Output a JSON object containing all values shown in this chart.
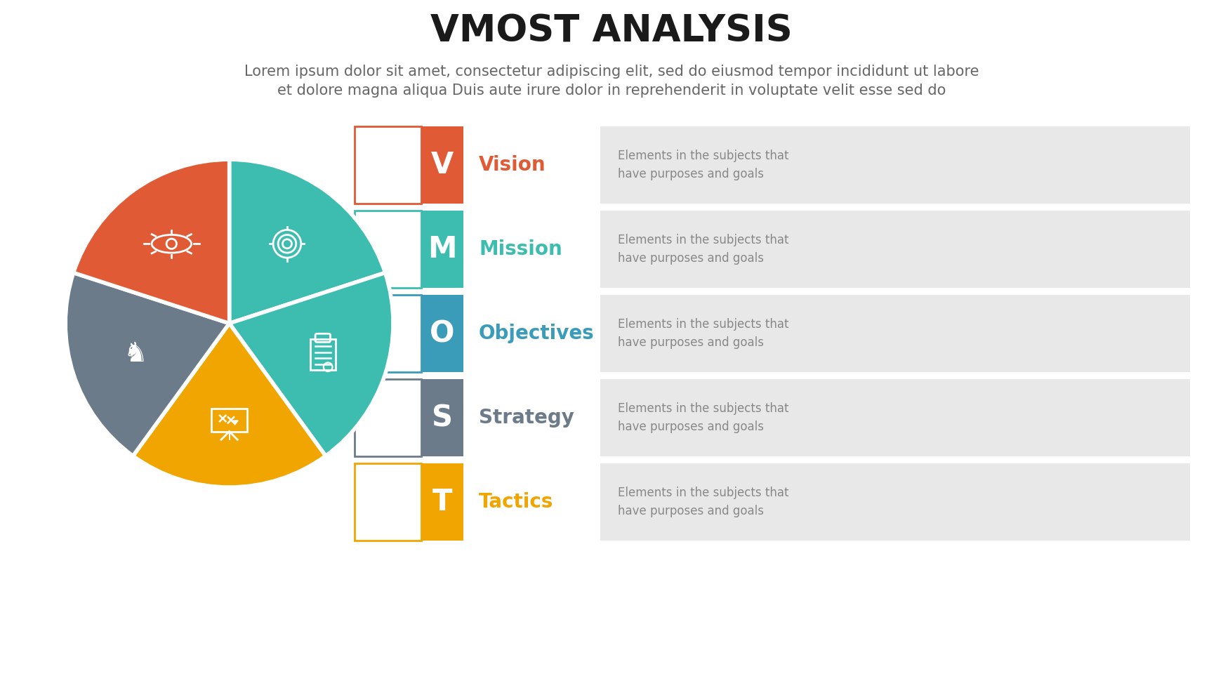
{
  "title": "VMOST ANALYSIS",
  "subtitle_line1": "Lorem ipsum dolor sit amet, consectetur adipiscing elit, sed do eiusmod tempor incididunt ut labore",
  "subtitle_line2": "et dolore magna aliqua Duis aute irure dolor in reprehenderit in voluptate velit esse sed do",
  "pie_colors_ordered": [
    "#3CBDB0",
    "#3CBDB0",
    "#F0A500",
    "#6C7B8A",
    "#E05A35"
  ],
  "rows": [
    {
      "letter": "V",
      "label": "Vision",
      "desc": "Elements in the subjects that\nhave purposes and goals",
      "color": "#E05A35"
    },
    {
      "letter": "M",
      "label": "Mission",
      "desc": "Elements in the subjects that\nhave purposes and goals",
      "color": "#3CBDB0"
    },
    {
      "letter": "O",
      "label": "Objectives",
      "desc": "Elements in the subjects that\nhave purposes and goals",
      "color": "#3A9CB8"
    },
    {
      "letter": "S",
      "label": "Strategy",
      "desc": "Elements in the subjects that\nhave purposes and goals",
      "color": "#6C7B8A"
    },
    {
      "letter": "T",
      "label": "Tactics",
      "desc": "Elements in the subjects that\nhave purposes and goals",
      "color": "#F0A500"
    }
  ],
  "bg_color": "#FFFFFF",
  "title_fontsize": 38,
  "subtitle_fontsize": 15
}
